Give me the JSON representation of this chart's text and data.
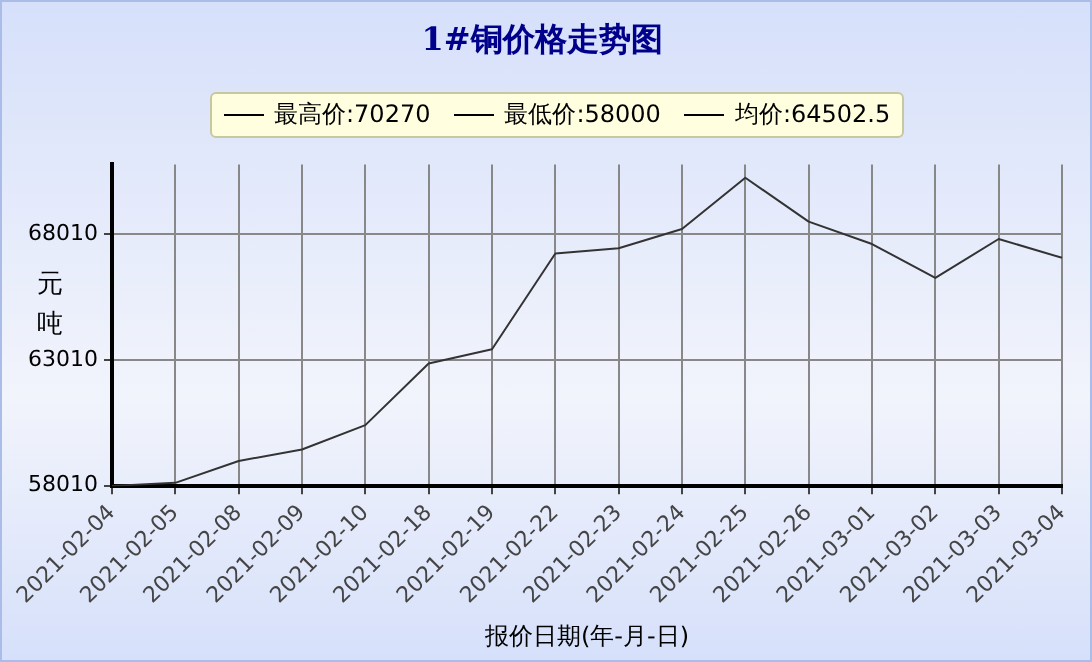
{
  "chart_data": {
    "type": "line",
    "title": "1#铜价格走势图",
    "xlabel": "报价日期(年-月-日)",
    "ylabel": "元吨",
    "annotations": [
      "最高价:70270",
      "最低价:58000",
      "均价:64502.5"
    ],
    "categories": [
      "2021-02-04",
      "2021-02-05",
      "2021-02-08",
      "2021-02-09",
      "2021-02-10",
      "2021-02-18",
      "2021-02-19",
      "2021-02-22",
      "2021-02-23",
      "2021-02-24",
      "2021-02-25",
      "2021-02-26",
      "2021-03-01",
      "2021-03-02",
      "2021-03-03",
      "2021-03-04"
    ],
    "series": [
      {
        "color": "#333333",
        "values": [
          58000,
          58120,
          58990,
          59450,
          60420,
          62870,
          63440,
          67250,
          67460,
          68230,
          70270,
          68520,
          67630,
          66280,
          67830,
          67080
        ]
      }
    ],
    "ylim": [
      57990,
      70800
    ],
    "yticks": [
      58010,
      63010,
      68010
    ],
    "grid": true,
    "marker": "none",
    "line_style": "solid"
  }
}
